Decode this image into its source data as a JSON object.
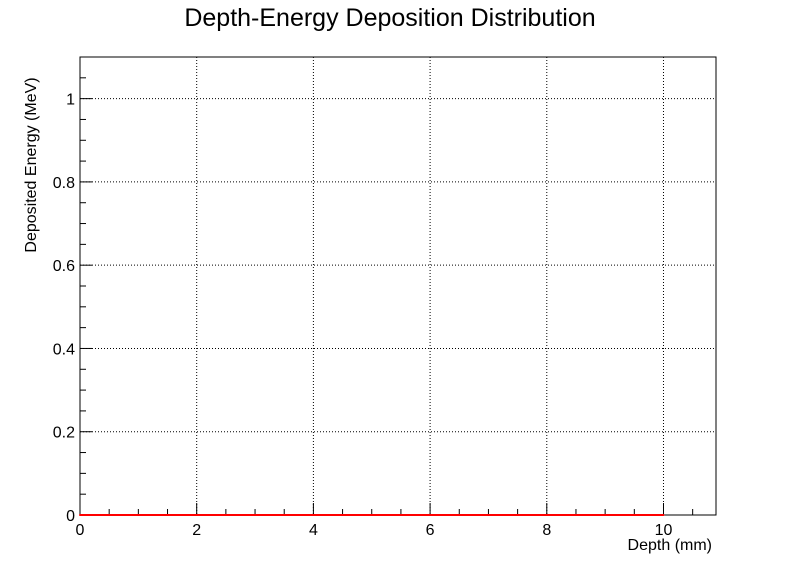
{
  "chart_data": {
    "type": "line",
    "title": "Depth-Energy Deposition Distribution",
    "xlabel": "Depth (mm)",
    "ylabel": "Deposited Energy (MeV)",
    "xlim": [
      0,
      10.9
    ],
    "ylim": [
      0,
      1.1
    ],
    "x_ticks": [
      0,
      2,
      4,
      6,
      8,
      10
    ],
    "x_tick_labels": [
      "0",
      "2",
      "4",
      "6",
      "8",
      "10"
    ],
    "y_ticks": [
      0,
      0.2,
      0.4,
      0.6,
      0.8,
      1
    ],
    "y_tick_labels": [
      "0",
      "0.2",
      "0.4",
      "0.6",
      "0.8",
      "1"
    ],
    "grid": true,
    "series": [
      {
        "color": "#ff0000",
        "x": [
          0,
          0.5,
          1,
          1.5,
          2,
          2.5,
          3,
          3.5,
          4,
          4.5,
          5,
          5.5,
          6,
          6.5,
          7,
          7.5,
          8,
          8.5,
          9,
          9.5,
          10
        ],
        "values": [
          0,
          0,
          0,
          0,
          0,
          0,
          0,
          0,
          0,
          0,
          0,
          0,
          0,
          0,
          0,
          0,
          0,
          0,
          0,
          0,
          0
        ]
      }
    ]
  }
}
